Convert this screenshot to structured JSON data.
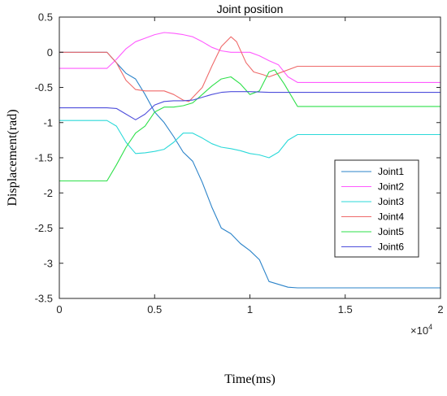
{
  "chart_data": {
    "type": "line",
    "title": "Joint position",
    "xlabel": "Time(ms)",
    "ylabel": "Displacement(rad)",
    "x_multiplier_base": "×10",
    "x_multiplier_exp": "4",
    "xlim": [
      0,
      20000
    ],
    "ylim": [
      -3.5,
      0.5
    ],
    "xticks": [
      0,
      5000,
      10000,
      15000,
      20000
    ],
    "xtick_labels": [
      "0",
      "0.5",
      "1",
      "1.5",
      "2"
    ],
    "yticks": [
      0.5,
      0,
      -0.5,
      -1,
      -1.5,
      -2,
      -2.5,
      -3,
      -3.5
    ],
    "ytick_labels": [
      "0.5",
      "0",
      "-0.5",
      "-1",
      "-1.5",
      "-2",
      "-2.5",
      "-3",
      "-3.5"
    ],
    "grid": false,
    "legend_position": "right-middle",
    "series": [
      {
        "name": "Joint1",
        "color": "#2b83c9",
        "x": [
          0,
          2500,
          3000,
          3500,
          4000,
          4500,
          5000,
          5500,
          6000,
          6500,
          7000,
          7500,
          8000,
          8500,
          9000,
          9500,
          10000,
          10500,
          11000,
          11500,
          12000,
          12500,
          20000
        ],
        "y": [
          0,
          0,
          -0.15,
          -0.3,
          -0.38,
          -0.6,
          -0.85,
          -1.0,
          -1.2,
          -1.42,
          -1.55,
          -1.85,
          -2.2,
          -2.5,
          -2.58,
          -2.72,
          -2.82,
          -2.95,
          -3.26,
          -3.3,
          -3.34,
          -3.35,
          -3.35
        ]
      },
      {
        "name": "Joint2",
        "color": "#ff5aff",
        "x": [
          0,
          2500,
          3000,
          3500,
          4000,
          4500,
          5000,
          5500,
          6000,
          6500,
          7000,
          7500,
          8000,
          8500,
          9000,
          9500,
          10000,
          10500,
          11000,
          11500,
          12000,
          12500,
          20000
        ],
        "y": [
          -0.23,
          -0.23,
          -0.1,
          0.05,
          0.15,
          0.2,
          0.25,
          0.28,
          0.27,
          0.25,
          0.22,
          0.15,
          0.07,
          0.02,
          0.0,
          0.0,
          0.0,
          -0.05,
          -0.12,
          -0.18,
          -0.35,
          -0.43,
          -0.43
        ]
      },
      {
        "name": "Joint3",
        "color": "#2bd9d9",
        "x": [
          0,
          2500,
          3000,
          3500,
          4000,
          4500,
          5000,
          5500,
          6000,
          6500,
          7000,
          7500,
          8000,
          8500,
          9000,
          9500,
          10000,
          10500,
          11000,
          11500,
          12000,
          12500,
          20000
        ],
        "y": [
          -0.97,
          -0.97,
          -1.05,
          -1.28,
          -1.44,
          -1.43,
          -1.41,
          -1.38,
          -1.28,
          -1.15,
          -1.15,
          -1.22,
          -1.3,
          -1.35,
          -1.37,
          -1.4,
          -1.44,
          -1.46,
          -1.5,
          -1.42,
          -1.25,
          -1.17,
          -1.17
        ]
      },
      {
        "name": "Joint4",
        "color": "#ef6a6a",
        "x": [
          0,
          2500,
          3000,
          3500,
          4000,
          4500,
          5000,
          5500,
          6000,
          6500,
          6800,
          7500,
          8000,
          8500,
          9000,
          9300,
          9800,
          10200,
          10700,
          11000,
          11500,
          12500,
          20000
        ],
        "y": [
          0,
          0,
          -0.15,
          -0.4,
          -0.53,
          -0.55,
          -0.55,
          -0.55,
          -0.6,
          -0.68,
          -0.7,
          -0.5,
          -0.2,
          0.08,
          0.22,
          0.15,
          -0.15,
          -0.28,
          -0.32,
          -0.35,
          -0.3,
          -0.2,
          -0.2
        ]
      },
      {
        "name": "Joint5",
        "color": "#2ee04a",
        "x": [
          0,
          2500,
          3000,
          3500,
          4000,
          4500,
          5000,
          5500,
          6000,
          6500,
          7000,
          7500,
          8000,
          8500,
          9000,
          9500,
          10000,
          10500,
          11000,
          11300,
          11800,
          12500,
          20000
        ],
        "y": [
          -1.83,
          -1.83,
          -1.6,
          -1.35,
          -1.15,
          -1.05,
          -0.85,
          -0.78,
          -0.78,
          -0.76,
          -0.72,
          -0.6,
          -0.48,
          -0.38,
          -0.35,
          -0.45,
          -0.6,
          -0.55,
          -0.28,
          -0.25,
          -0.45,
          -0.77,
          -0.77
        ]
      },
      {
        "name": "Joint6",
        "color": "#4e4edb",
        "x": [
          0,
          2500,
          3000,
          3500,
          4000,
          4500,
          5000,
          5500,
          6000,
          6500,
          7000,
          7500,
          8000,
          8500,
          9000,
          9500,
          10000,
          11000,
          12000,
          20000
        ],
        "y": [
          -0.79,
          -0.79,
          -0.8,
          -0.88,
          -0.96,
          -0.88,
          -0.75,
          -0.7,
          -0.69,
          -0.69,
          -0.68,
          -0.64,
          -0.6,
          -0.57,
          -0.56,
          -0.56,
          -0.56,
          -0.57,
          -0.57,
          -0.57
        ]
      }
    ]
  }
}
